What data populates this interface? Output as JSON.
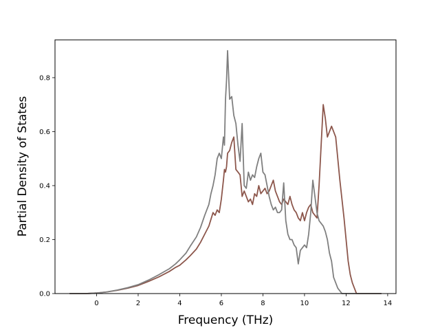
{
  "chart_data": {
    "type": "line",
    "title": "",
    "xlabel": "Frequency (THz)",
    "ylabel": "Partial Density of States",
    "xlim": [
      -2.0,
      14.4
    ],
    "ylim": [
      0.0,
      0.94
    ],
    "xticks": [
      0,
      2,
      4,
      6,
      8,
      10,
      12,
      14
    ],
    "yticks": [
      0.0,
      0.2,
      0.4,
      0.6,
      0.8
    ],
    "xtick_labels": [
      "0",
      "2",
      "4",
      "6",
      "8",
      "10",
      "12",
      "14"
    ],
    "ytick_labels": [
      "0.0",
      "0.2",
      "0.4",
      "0.6",
      "0.8"
    ],
    "grid": false,
    "legend": null,
    "series": [
      {
        "color": "#8c564b",
        "x": [
          -1.3,
          -0.5,
          0.0,
          0.5,
          1.0,
          1.5,
          2.0,
          2.5,
          3.0,
          3.5,
          3.8,
          4.0,
          4.3,
          4.5,
          4.8,
          5.0,
          5.2,
          5.4,
          5.5,
          5.6,
          5.7,
          5.8,
          5.9,
          6.0,
          6.1,
          6.15,
          6.2,
          6.25,
          6.3,
          6.4,
          6.5,
          6.6,
          6.7,
          6.8,
          6.9,
          7.0,
          7.1,
          7.2,
          7.3,
          7.4,
          7.5,
          7.6,
          7.7,
          7.8,
          7.9,
          8.0,
          8.1,
          8.2,
          8.3,
          8.4,
          8.5,
          8.6,
          8.7,
          8.8,
          8.9,
          9.0,
          9.1,
          9.2,
          9.3,
          9.4,
          9.5,
          9.6,
          9.7,
          9.8,
          9.9,
          10.0,
          10.1,
          10.2,
          10.3,
          10.4,
          10.5,
          10.6,
          10.7,
          10.8,
          10.9,
          11.0,
          11.1,
          11.2,
          11.3,
          11.4,
          11.5,
          11.6,
          11.7,
          11.8,
          11.9,
          12.0,
          12.1,
          12.2,
          12.3,
          12.4,
          12.5,
          13.0,
          13.7
        ],
        "y": [
          0.0,
          0.0,
          0.002,
          0.006,
          0.012,
          0.02,
          0.03,
          0.045,
          0.062,
          0.082,
          0.097,
          0.105,
          0.125,
          0.14,
          0.165,
          0.19,
          0.22,
          0.25,
          0.275,
          0.3,
          0.29,
          0.31,
          0.3,
          0.35,
          0.42,
          0.46,
          0.45,
          0.47,
          0.52,
          0.53,
          0.56,
          0.58,
          0.46,
          0.45,
          0.44,
          0.36,
          0.38,
          0.36,
          0.34,
          0.35,
          0.33,
          0.37,
          0.36,
          0.4,
          0.37,
          0.38,
          0.39,
          0.37,
          0.38,
          0.4,
          0.42,
          0.38,
          0.36,
          0.34,
          0.33,
          0.35,
          0.34,
          0.33,
          0.36,
          0.33,
          0.31,
          0.3,
          0.28,
          0.27,
          0.3,
          0.27,
          0.3,
          0.32,
          0.33,
          0.3,
          0.29,
          0.28,
          0.4,
          0.55,
          0.7,
          0.65,
          0.58,
          0.6,
          0.62,
          0.6,
          0.58,
          0.5,
          0.42,
          0.35,
          0.28,
          0.2,
          0.12,
          0.07,
          0.04,
          0.02,
          0.0,
          0.0,
          0.0
        ]
      },
      {
        "color": "#7f7f7f",
        "x": [
          -1.3,
          -0.5,
          0.0,
          0.5,
          1.0,
          1.5,
          2.0,
          2.5,
          3.0,
          3.5,
          3.8,
          4.0,
          4.3,
          4.5,
          4.8,
          5.0,
          5.2,
          5.4,
          5.5,
          5.6,
          5.7,
          5.8,
          5.9,
          6.0,
          6.1,
          6.15,
          6.2,
          6.25,
          6.3,
          6.4,
          6.5,
          6.6,
          6.7,
          6.8,
          6.9,
          7.0,
          7.1,
          7.2,
          7.3,
          7.4,
          7.5,
          7.6,
          7.7,
          7.8,
          7.9,
          8.0,
          8.1,
          8.2,
          8.3,
          8.4,
          8.5,
          8.6,
          8.7,
          8.8,
          8.9,
          9.0,
          9.1,
          9.2,
          9.3,
          9.4,
          9.5,
          9.6,
          9.7,
          9.8,
          9.9,
          10.0,
          10.1,
          10.2,
          10.3,
          10.4,
          10.5,
          10.6,
          10.7,
          10.8,
          10.9,
          11.0,
          11.1,
          11.2,
          11.3,
          11.4,
          11.5,
          11.6,
          11.7,
          11.8,
          11.9,
          12.0,
          12.1,
          12.2,
          12.3,
          12.4,
          12.5,
          13.0,
          13.7
        ],
        "y": [
          0.0,
          0.0,
          0.002,
          0.006,
          0.013,
          0.022,
          0.033,
          0.05,
          0.07,
          0.092,
          0.11,
          0.125,
          0.15,
          0.175,
          0.21,
          0.245,
          0.29,
          0.33,
          0.37,
          0.4,
          0.44,
          0.5,
          0.52,
          0.5,
          0.58,
          0.55,
          0.72,
          0.79,
          0.9,
          0.72,
          0.73,
          0.66,
          0.63,
          0.55,
          0.49,
          0.63,
          0.4,
          0.39,
          0.45,
          0.42,
          0.44,
          0.43,
          0.47,
          0.5,
          0.52,
          0.45,
          0.44,
          0.4,
          0.36,
          0.33,
          0.31,
          0.32,
          0.3,
          0.3,
          0.31,
          0.41,
          0.27,
          0.22,
          0.2,
          0.2,
          0.18,
          0.17,
          0.11,
          0.16,
          0.17,
          0.18,
          0.17,
          0.22,
          0.3,
          0.42,
          0.36,
          0.3,
          0.27,
          0.26,
          0.25,
          0.23,
          0.2,
          0.15,
          0.12,
          0.06,
          0.04,
          0.02,
          0.01,
          0.0,
          0.0,
          0.0,
          0.0,
          0.0,
          0.0,
          0.0,
          0.0,
          0.0,
          0.0
        ]
      }
    ]
  }
}
